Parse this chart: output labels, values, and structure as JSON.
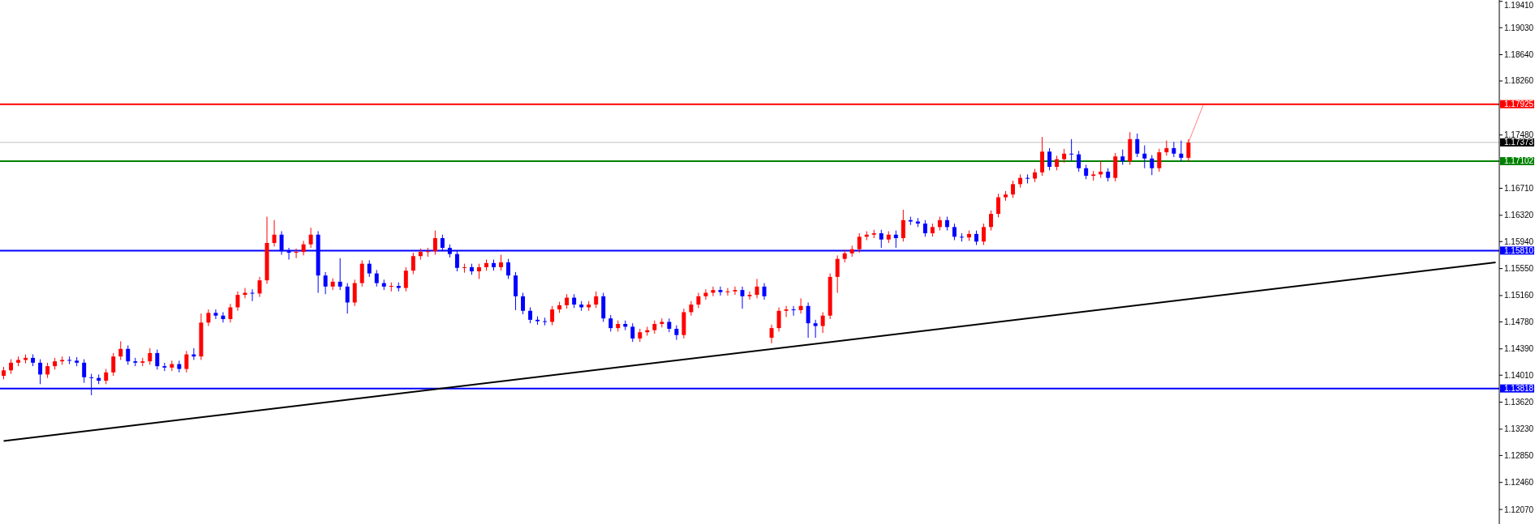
{
  "chart_data": {
    "type": "candlestick",
    "tick_labels": "y",
    "colors": [
      "#ff0000",
      "#ff0000",
      "#ff0000",
      "#ff0000",
      "#0000ff",
      "#0000ff",
      "#ff0000",
      "#ff0000",
      "#ff0000",
      "#0000ff",
      "#0000ff",
      "#0000ff",
      "#0000ff",
      "#0000ff",
      "#ff0000",
      "#ff0000",
      "#ff0000",
      "#0000ff",
      "#0000ff",
      "#ff0000",
      "#ff0000",
      "#0000ff",
      "#0000ff",
      "#ff0000",
      "#0000ff",
      "#ff0000",
      "#0000ff",
      "#ff0000",
      "#ff0000",
      "#0000ff",
      "#0000ff",
      "#ff0000",
      "#ff0000",
      "#ff0000",
      "#0000ff",
      "#ff0000",
      "#ff0000",
      "#ff0000",
      "#0000ff",
      "#0000ff",
      "#ff0000",
      "#ff0000",
      "#ff0000",
      "#0000ff",
      "#0000ff",
      "#ff0000",
      "#0000ff",
      "#0000ff",
      "#ff0000",
      "#ff0000",
      "#0000ff",
      "#0000ff",
      "#0000ff",
      "#ff0000",
      "#0000ff",
      "#ff0000",
      "#ff0000",
      "#ff0000",
      "#ff0000",
      "#ff0000",
      "#0000ff",
      "#0000ff",
      "#0000ff",
      "#ff0000",
      "#0000ff",
      "#ff0000",
      "#ff0000",
      "#0000ff",
      "#ff0000",
      "#0000ff",
      "#0000ff",
      "#0000ff",
      "#0000ff",
      "#0000ff",
      "#0000ff",
      "#ff0000",
      "#ff0000",
      "#ff0000",
      "#0000ff",
      "#0000ff",
      "#ff0000",
      "#ff0000",
      "#0000ff",
      "#0000ff",
      "#ff0000",
      "#0000ff",
      "#0000ff",
      "#ff0000",
      "#ff0000",
      "#ff0000",
      "#ff0000",
      "#0000ff",
      "#0000ff",
      "#ff0000",
      "#ff0000",
      "#ff0000",
      "#ff0000",
      "#ff0000",
      "#0000ff",
      "#ff0000",
      "#ff0000",
      "#0000ff",
      "#ff0000",
      "#ff0000",
      "#0000ff",
      "#ff0000",
      "#ff0000",
      "#ff0000",
      "#0000ff",
      "#ff0000",
      "#0000ff",
      "#0000ff",
      "#ff0000",
      "#ff0000",
      "#ff0000",
      "#ff0000",
      "#ff0000",
      "#ff0000",
      "#ff0000",
      "#ff0000",
      "#0000ff",
      "#ff0000",
      "#0000ff",
      "#ff0000",
      "#0000ff",
      "#0000ff",
      "#0000ff",
      "#ff0000",
      "#ff0000",
      "#0000ff",
      "#0000ff",
      "#0000ff",
      "#ff0000",
      "#0000ff",
      "#ff0000",
      "#ff0000",
      "#ff0000",
      "#ff0000",
      "#ff0000",
      "#ff0000",
      "#0000ff",
      "#ff0000",
      "#ff0000",
      "#0000ff",
      "#ff0000",
      "#ff0000",
      "#0000ff",
      "#0000ff",
      "#0000ff",
      "#ff0000",
      "#ff0000",
      "#0000ff",
      "#ff0000",
      "#0000ff",
      "#ff0000",
      "#0000ff",
      "#0000ff",
      "#0000ff",
      "#ff0000",
      "#ff0000",
      "#0000ff",
      "#0000ff",
      "#ff0000",
      null,
      null,
      null,
      null,
      null,
      null,
      null,
      null,
      null,
      null,
      null,
      null,
      null,
      null,
      null,
      null,
      null,
      null,
      null,
      null,
      null,
      null,
      null,
      null,
      null,
      null,
      null,
      null,
      null,
      null,
      null,
      null,
      null,
      null,
      null,
      null,
      null,
      null,
      null,
      null,
      null,
      null
    ],
    "ylim": [
      1.1186,
      1.1943
    ],
    "yticks": [
      {
        "value": 1.1941,
        "label": "1.19410"
      },
      {
        "value": 1.1903,
        "label": "1.19030"
      },
      {
        "value": 1.1864,
        "label": "1.18640"
      },
      {
        "value": 1.1826,
        "label": "1.18260"
      },
      {
        "value": 1.1748,
        "label": "1.17480"
      },
      {
        "value": 1.1671,
        "label": "1.16710"
      },
      {
        "value": 1.1632,
        "label": "1.16320"
      },
      {
        "value": 1.1594,
        "label": "1.15940"
      },
      {
        "value": 1.1555,
        "label": "1.15550"
      },
      {
        "value": 1.1516,
        "label": "1.15160"
      },
      {
        "value": 1.1478,
        "label": "1.14780"
      },
      {
        "value": 1.1439,
        "label": "1.14390"
      },
      {
        "value": 1.1401,
        "label": "1.14010"
      },
      {
        "value": 1.1362,
        "label": "1.13620"
      },
      {
        "value": 1.1323,
        "label": "1.13230"
      },
      {
        "value": 1.1285,
        "label": "1.12850"
      },
      {
        "value": 1.1246,
        "label": "1.12460"
      },
      {
        "value": 1.1207,
        "label": "1.12070"
      }
    ],
    "ref_lines": [
      {
        "axis": "y",
        "value": 1.17925,
        "label": "1.17925",
        "color": "#ff0000"
      },
      {
        "axis": "y",
        "value": 1.17373,
        "label": "1.17373",
        "color": "#c0c0c0"
      },
      {
        "axis": "y",
        "value": 1.17102,
        "label": "1.17102",
        "color": "#008000"
      },
      {
        "axis": "y",
        "value": 1.1581,
        "label": "1.15810",
        "color": "#0000ff"
      },
      {
        "axis": "y",
        "value": 1.13818,
        "label": "1.13818",
        "color": "#0000ff"
      }
    ],
    "categories": [
      null,
      null,
      null,
      null,
      null,
      null,
      null,
      null,
      null,
      null,
      null,
      null,
      null,
      null,
      null,
      null,
      null,
      null,
      null,
      null,
      null,
      null,
      null,
      null,
      null,
      null,
      null,
      null,
      null,
      null,
      null,
      null,
      null,
      null,
      null,
      null,
      null,
      null,
      null,
      null,
      null,
      null,
      null,
      null,
      null,
      null,
      null,
      null,
      null,
      null,
      null,
      null,
      null,
      null,
      null,
      null,
      null,
      null,
      null,
      null,
      null,
      null,
      null,
      null,
      null,
      null,
      null,
      null,
      null,
      null,
      null,
      null,
      null,
      null,
      null,
      null,
      null,
      null,
      null,
      null,
      null,
      null,
      null,
      null,
      null,
      null,
      null,
      null,
      null,
      null,
      null,
      null,
      null,
      null,
      null,
      null,
      null,
      null,
      null,
      null,
      null,
      null,
      null,
      null,
      null,
      null,
      null,
      null,
      null,
      null,
      null,
      null,
      null,
      null,
      null,
      null,
      null,
      null,
      null,
      null,
      null,
      null,
      null,
      null,
      null,
      null,
      null,
      null,
      null,
      null,
      null,
      null,
      null,
      null,
      null,
      null,
      null,
      null,
      null,
      null,
      null,
      null,
      null,
      null,
      null,
      null,
      null,
      null,
      null,
      null,
      null,
      null,
      null,
      null,
      null,
      null,
      null,
      null,
      null,
      null,
      null,
      null,
      null,
      null,
      null,
      null,
      null,
      null,
      null,
      null,
      null,
      null,
      null,
      null,
      null,
      null,
      null,
      null,
      null,
      null,
      null,
      null,
      null,
      null,
      null,
      null,
      null,
      null,
      null,
      null,
      null,
      null,
      null,
      null,
      null,
      null,
      null,
      null,
      null,
      null,
      null,
      null,
      null,
      null,
      null
    ],
    "ohlc": [
      [
        1.14,
        1.1413,
        1.1395,
        1.1408
      ],
      [
        1.1408,
        1.1424,
        1.1403,
        1.1419
      ],
      [
        1.1419,
        1.1428,
        1.1414,
        1.1423
      ],
      [
        1.1423,
        1.1431,
        1.1418,
        1.1426
      ],
      [
        1.1426,
        1.1431,
        1.1414,
        1.1419
      ],
      [
        1.1419,
        1.1424,
        1.1388,
        1.1402
      ],
      [
        1.1402,
        1.1419,
        1.1397,
        1.1414
      ],
      [
        1.1414,
        1.1426,
        1.1409,
        1.1421
      ],
      [
        1.1421,
        1.1428,
        1.1416,
        1.1423
      ],
      [
        1.1423,
        1.1428,
        1.1417,
        1.1422
      ],
      [
        1.1422,
        1.1427,
        1.1414,
        1.1419
      ],
      [
        1.1419,
        1.1424,
        1.139,
        1.1398
      ],
      [
        1.1398,
        1.1403,
        1.1372,
        1.1397
      ],
      [
        1.1397,
        1.1402,
        1.1388,
        1.1393
      ],
      [
        1.1393,
        1.141,
        1.1388,
        1.1405
      ],
      [
        1.1405,
        1.1433,
        1.14,
        1.1428
      ],
      [
        1.1428,
        1.145,
        1.1423,
        1.1439
      ],
      [
        1.1439,
        1.1444,
        1.1416,
        1.1421
      ],
      [
        1.1421,
        1.1426,
        1.1414,
        1.1419
      ],
      [
        1.1419,
        1.1426,
        1.1414,
        1.1421
      ],
      [
        1.1421,
        1.144,
        1.1416,
        1.1433
      ],
      [
        1.1433,
        1.1438,
        1.1409,
        1.1414
      ],
      [
        1.1414,
        1.1419,
        1.1407,
        1.1412
      ],
      [
        1.1412,
        1.1422,
        1.1407,
        1.1417
      ],
      [
        1.1417,
        1.1422,
        1.1405,
        1.141
      ],
      [
        1.141,
        1.1436,
        1.1405,
        1.1431
      ],
      [
        1.1431,
        1.144,
        1.1423,
        1.1428
      ],
      [
        1.1428,
        1.149,
        1.1423,
        1.1477
      ],
      [
        1.1477,
        1.1496,
        1.1472,
        1.1491
      ],
      [
        1.1491,
        1.1496,
        1.1482,
        1.1487
      ],
      [
        1.1487,
        1.1492,
        1.1477,
        1.1482
      ],
      [
        1.1482,
        1.1504,
        1.1477,
        1.1499
      ],
      [
        1.1499,
        1.1522,
        1.1494,
        1.1517
      ],
      [
        1.1517,
        1.1527,
        1.1512,
        1.152
      ],
      [
        1.152,
        1.1525,
        1.1508,
        1.1519
      ],
      [
        1.1519,
        1.1543,
        1.1514,
        1.1538
      ],
      [
        1.1538,
        1.163,
        1.1533,
        1.1592
      ],
      [
        1.1592,
        1.1625,
        1.1587,
        1.1604
      ],
      [
        1.1604,
        1.1609,
        1.1575,
        1.158
      ],
      [
        1.158,
        1.1585,
        1.1568,
        1.1578
      ],
      [
        1.1578,
        1.1584,
        1.157,
        1.1579
      ],
      [
        1.1579,
        1.1595,
        1.1574,
        1.159
      ],
      [
        1.159,
        1.1614,
        1.1585,
        1.1604
      ],
      [
        1.1604,
        1.1609,
        1.152,
        1.1545
      ],
      [
        1.1545,
        1.155,
        1.1518,
        1.1529
      ],
      [
        1.1529,
        1.1541,
        1.1524,
        1.1536
      ],
      [
        1.1536,
        1.157,
        1.1524,
        1.1529
      ],
      [
        1.1529,
        1.1534,
        1.149,
        1.1506
      ],
      [
        1.1506,
        1.1539,
        1.1501,
        1.1534
      ],
      [
        1.1534,
        1.1567,
        1.1529,
        1.1562
      ],
      [
        1.1562,
        1.1567,
        1.1543,
        1.1548
      ],
      [
        1.1548,
        1.1553,
        1.1529,
        1.1534
      ],
      [
        1.1534,
        1.1539,
        1.1524,
        1.1529
      ],
      [
        1.1529,
        1.1535,
        1.1522,
        1.153
      ],
      [
        1.153,
        1.1535,
        1.1522,
        1.1527
      ],
      [
        1.1527,
        1.1557,
        1.1522,
        1.1552
      ],
      [
        1.1552,
        1.1578,
        1.1547,
        1.1573
      ],
      [
        1.1573,
        1.1584,
        1.1568,
        1.1579
      ],
      [
        1.1579,
        1.1585,
        1.1572,
        1.158
      ],
      [
        1.158,
        1.161,
        1.1575,
        1.1599
      ],
      [
        1.1599,
        1.1604,
        1.158,
        1.1585
      ],
      [
        1.1585,
        1.159,
        1.1571,
        1.1576
      ],
      [
        1.1576,
        1.1581,
        1.1551,
        1.1556
      ],
      [
        1.1556,
        1.1562,
        1.1549,
        1.1557
      ],
      [
        1.1557,
        1.1562,
        1.1546,
        1.1551
      ],
      [
        1.1551,
        1.1562,
        1.154,
        1.1557
      ],
      [
        1.1557,
        1.1568,
        1.1552,
        1.1563
      ],
      [
        1.1563,
        1.1568,
        1.1552,
        1.1557
      ],
      [
        1.1557,
        1.1575,
        1.1552,
        1.1564
      ],
      [
        1.1564,
        1.1569,
        1.154,
        1.1545
      ],
      [
        1.1545,
        1.155,
        1.1495,
        1.1515
      ],
      [
        1.1515,
        1.152,
        1.1489,
        1.1494
      ],
      [
        1.1494,
        1.1499,
        1.1476,
        1.1481
      ],
      [
        1.1481,
        1.1486,
        1.1474,
        1.1479
      ],
      [
        1.1479,
        1.1484,
        1.1473,
        1.1478
      ],
      [
        1.1478,
        1.1501,
        1.1473,
        1.1496
      ],
      [
        1.1496,
        1.1507,
        1.1491,
        1.1502
      ],
      [
        1.1502,
        1.1518,
        1.1497,
        1.1513
      ],
      [
        1.1513,
        1.1518,
        1.1498,
        1.1503
      ],
      [
        1.1503,
        1.1508,
        1.1494,
        1.1499
      ],
      [
        1.1499,
        1.1508,
        1.1494,
        1.1503
      ],
      [
        1.1503,
        1.1522,
        1.1498,
        1.1515
      ],
      [
        1.1515,
        1.152,
        1.1478,
        1.1483
      ],
      [
        1.1483,
        1.1488,
        1.1464,
        1.1469
      ],
      [
        1.1469,
        1.148,
        1.1464,
        1.1475
      ],
      [
        1.1475,
        1.148,
        1.1466,
        1.1471
      ],
      [
        1.1471,
        1.1476,
        1.1449,
        1.1454
      ],
      [
        1.1454,
        1.1468,
        1.1449,
        1.1463
      ],
      [
        1.1463,
        1.1471,
        1.1458,
        1.1466
      ],
      [
        1.1466,
        1.148,
        1.1461,
        1.1475
      ],
      [
        1.1475,
        1.1483,
        1.147,
        1.1478
      ],
      [
        1.1478,
        1.1483,
        1.1463,
        1.1468
      ],
      [
        1.1468,
        1.1473,
        1.1452,
        1.1459
      ],
      [
        1.1459,
        1.1497,
        1.1454,
        1.1492
      ],
      [
        1.1492,
        1.1508,
        1.1487,
        1.1503
      ],
      [
        1.1503,
        1.152,
        1.1498,
        1.1515
      ],
      [
        1.1515,
        1.1525,
        1.151,
        1.152
      ],
      [
        1.152,
        1.1529,
        1.1515,
        1.1524
      ],
      [
        1.1524,
        1.1529,
        1.1516,
        1.1521
      ],
      [
        1.1521,
        1.1527,
        1.1516,
        1.1522
      ],
      [
        1.1522,
        1.1529,
        1.1517,
        1.1524
      ],
      [
        1.1524,
        1.1529,
        1.1497,
        1.1515
      ],
      [
        1.1515,
        1.1522,
        1.151,
        1.1517
      ],
      [
        1.1517,
        1.154,
        1.1512,
        1.1529
      ],
      [
        1.1529,
        1.1534,
        1.151,
        1.1515
      ],
      [
        1.1455,
        1.1474,
        1.1447,
        1.1469
      ],
      [
        1.1469,
        1.1499,
        1.1464,
        1.1494
      ],
      [
        1.1494,
        1.1501,
        1.1485,
        1.1496
      ],
      [
        1.1496,
        1.1501,
        1.1487,
        1.1495
      ],
      [
        1.1495,
        1.1512,
        1.149,
        1.1501
      ],
      [
        1.1501,
        1.1506,
        1.1455,
        1.1476
      ],
      [
        1.1476,
        1.1481,
        1.1455,
        1.1472
      ],
      [
        1.1472,
        1.1492,
        1.1462,
        1.1487
      ],
      [
        1.1487,
        1.1548,
        1.1482,
        1.1543
      ],
      [
        1.1543,
        1.1574,
        1.152,
        1.1569
      ],
      [
        1.1569,
        1.1582,
        1.1564,
        1.1577
      ],
      [
        1.1577,
        1.1588,
        1.1572,
        1.1583
      ],
      [
        1.1583,
        1.1606,
        1.1578,
        1.1601
      ],
      [
        1.1601,
        1.1609,
        1.1596,
        1.1604
      ],
      [
        1.1604,
        1.1611,
        1.1599,
        1.1606
      ],
      [
        1.1606,
        1.1611,
        1.1585,
        1.1597
      ],
      [
        1.1597,
        1.1609,
        1.1592,
        1.1604
      ],
      [
        1.1604,
        1.161,
        1.1585,
        1.1599
      ],
      [
        1.1599,
        1.164,
        1.1594,
        1.1625
      ],
      [
        1.1625,
        1.163,
        1.1618,
        1.1623
      ],
      [
        1.1623,
        1.1628,
        1.1615,
        1.162
      ],
      [
        1.162,
        1.1625,
        1.1601,
        1.1606
      ],
      [
        1.1606,
        1.162,
        1.1601,
        1.1615
      ],
      [
        1.1615,
        1.163,
        1.161,
        1.1625
      ],
      [
        1.1625,
        1.163,
        1.161,
        1.1615
      ],
      [
        1.1615,
        1.162,
        1.1596,
        1.1601
      ],
      [
        1.1601,
        1.1606,
        1.1594,
        1.16
      ],
      [
        1.16,
        1.161,
        1.1595,
        1.1605
      ],
      [
        1.1605,
        1.161,
        1.1589,
        1.1594
      ],
      [
        1.1594,
        1.162,
        1.1589,
        1.1615
      ],
      [
        1.1615,
        1.1639,
        1.161,
        1.1634
      ],
      [
        1.1634,
        1.1663,
        1.1629,
        1.1658
      ],
      [
        1.1658,
        1.1667,
        1.1653,
        1.1662
      ],
      [
        1.1662,
        1.1682,
        1.1657,
        1.1677
      ],
      [
        1.1677,
        1.1691,
        1.1672,
        1.1686
      ],
      [
        1.1686,
        1.1691,
        1.1678,
        1.1685
      ],
      [
        1.1685,
        1.1699,
        1.168,
        1.1694
      ],
      [
        1.1694,
        1.1745,
        1.1689,
        1.1724
      ],
      [
        1.1724,
        1.1729,
        1.1697,
        1.1702
      ],
      [
        1.1702,
        1.1718,
        1.1697,
        1.1713
      ],
      [
        1.1713,
        1.1728,
        1.1708,
        1.1721
      ],
      [
        1.1721,
        1.1742,
        1.1711,
        1.172
      ],
      [
        1.172,
        1.1725,
        1.1695,
        1.17
      ],
      [
        1.17,
        1.1705,
        1.1684,
        1.1689
      ],
      [
        1.1689,
        1.1696,
        1.1682,
        1.1691
      ],
      [
        1.1691,
        1.171,
        1.1686,
        1.1695
      ],
      [
        1.1695,
        1.17,
        1.1681,
        1.1686
      ],
      [
        1.1686,
        1.1722,
        1.1681,
        1.1717
      ],
      [
        1.1717,
        1.1727,
        1.1705,
        1.171
      ],
      [
        1.171,
        1.1752,
        1.1705,
        1.1742
      ],
      [
        1.1742,
        1.175,
        1.1716,
        1.1721
      ],
      [
        1.1721,
        1.1733,
        1.17,
        1.1714
      ],
      [
        1.1714,
        1.1719,
        1.169,
        1.17
      ],
      [
        1.17,
        1.1728,
        1.1695,
        1.1723
      ],
      [
        1.1723,
        1.174,
        1.1718,
        1.1729
      ],
      [
        1.1729,
        1.1738,
        1.1716,
        1.1721
      ],
      [
        1.1721,
        1.174,
        1.171,
        1.1715
      ],
      [
        1.1715,
        1.1742,
        1.171,
        1.1737
      ],
      null,
      null,
      null,
      null,
      null,
      null,
      null,
      null,
      null,
      null,
      null,
      null,
      null,
      null,
      null,
      null,
      null,
      null,
      null,
      null,
      null,
      null,
      null,
      null,
      null,
      null,
      null,
      null,
      null,
      null,
      null,
      null,
      null,
      null,
      null,
      null,
      null,
      null,
      null,
      null,
      null,
      null
    ],
    "series": [
      {
        "type": "line",
        "color": "#000000",
        "values": [
          1.1306,
          null,
          null,
          null,
          null,
          null,
          null,
          null,
          null,
          null,
          null,
          null,
          null,
          null,
          null,
          null,
          null,
          null,
          null,
          null,
          null,
          null,
          null,
          null,
          null,
          null,
          null,
          null,
          null,
          null,
          null,
          null,
          null,
          null,
          null,
          null,
          null,
          null,
          null,
          null,
          null,
          null,
          null,
          null,
          null,
          null,
          null,
          null,
          null,
          null,
          null,
          null,
          null,
          null,
          null,
          null,
          null,
          null,
          null,
          null,
          null,
          null,
          null,
          null,
          null,
          null,
          null,
          null,
          null,
          null,
          null,
          null,
          null,
          null,
          null,
          null,
          null,
          null,
          null,
          null,
          null,
          null,
          null,
          null,
          null,
          null,
          null,
          null,
          null,
          null,
          null,
          null,
          null,
          null,
          null,
          null,
          null,
          null,
          null,
          null,
          null,
          null,
          null,
          null,
          null,
          null,
          null,
          null,
          null,
          null,
          null,
          null,
          null,
          null,
          null,
          null,
          null,
          null,
          null,
          null,
          null,
          null,
          null,
          null,
          null,
          null,
          null,
          null,
          null,
          null,
          null,
          null,
          null,
          null,
          null,
          null,
          null,
          null,
          null,
          null,
          null,
          null,
          null,
          null,
          null,
          null,
          null,
          null,
          null,
          null,
          null,
          null,
          null,
          null,
          null,
          null,
          null,
          null,
          null,
          null,
          null,
          null,
          null,
          null,
          null,
          null,
          null,
          null,
          null,
          null,
          null,
          null,
          null,
          null,
          null,
          null,
          null,
          null,
          null,
          null,
          null,
          null,
          null,
          null,
          null,
          null,
          null,
          null,
          null,
          null,
          null,
          null,
          null,
          null,
          null,
          null,
          null,
          null,
          null,
          null,
          null,
          null,
          null,
          null,
          1.1564
        ]
      },
      {
        "type": "line",
        "color": "#ff8080",
        "values": [
          null,
          null,
          null,
          null,
          null,
          null,
          null,
          null,
          null,
          null,
          null,
          null,
          null,
          null,
          null,
          null,
          null,
          null,
          null,
          null,
          null,
          null,
          null,
          null,
          null,
          null,
          null,
          null,
          null,
          null,
          null,
          null,
          null,
          null,
          null,
          null,
          null,
          null,
          null,
          null,
          null,
          null,
          null,
          null,
          null,
          null,
          null,
          null,
          null,
          null,
          null,
          null,
          null,
          null,
          null,
          null,
          null,
          null,
          null,
          null,
          null,
          null,
          null,
          null,
          null,
          null,
          null,
          null,
          null,
          null,
          null,
          null,
          null,
          null,
          null,
          null,
          null,
          null,
          null,
          null,
          null,
          null,
          null,
          null,
          null,
          null,
          null,
          null,
          null,
          null,
          null,
          null,
          null,
          null,
          null,
          null,
          null,
          null,
          null,
          null,
          null,
          null,
          null,
          null,
          null,
          null,
          null,
          null,
          null,
          null,
          null,
          null,
          null,
          null,
          null,
          null,
          null,
          null,
          null,
          null,
          null,
          null,
          null,
          null,
          null,
          null,
          null,
          null,
          null,
          null,
          null,
          null,
          null,
          null,
          null,
          null,
          null,
          null,
          null,
          null,
          null,
          null,
          null,
          null,
          null,
          null,
          null,
          null,
          null,
          null,
          null,
          null,
          null,
          null,
          null,
          null,
          null,
          null,
          null,
          null,
          null,
          null,
          1.1737,
          null,
          1.1791,
          null,
          null,
          null,
          null,
          null,
          null,
          null,
          null,
          null,
          null,
          null,
          null,
          null,
          null,
          null,
          null,
          null,
          null,
          null,
          null,
          null,
          null,
          null,
          null,
          null,
          null,
          null,
          null,
          null,
          null,
          null,
          null,
          null,
          null,
          null,
          null,
          null,
          null,
          null,
          null
        ]
      }
    ]
  }
}
